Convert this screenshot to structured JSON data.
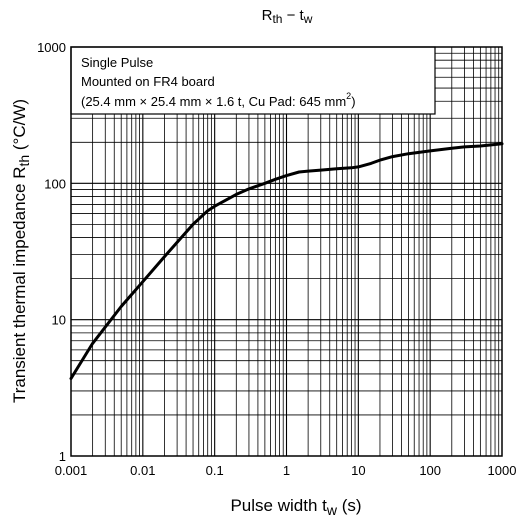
{
  "chart_data": {
    "type": "line",
    "title_main": "R",
    "title_sub": "th",
    "title_mid": " − t",
    "title_sub2": "w",
    "xlabel_main": "Pulse width    t",
    "xlabel_sub": "w",
    "xlabel_unit": "   (s)",
    "ylabel_main": "Transient thermal impedance  R",
    "ylabel_sub": "th",
    "ylabel_unit": "  (°C/W)",
    "x_scale": "log",
    "y_scale": "log",
    "xlim": [
      0.001,
      1000
    ],
    "ylim": [
      1,
      1000
    ],
    "x_ticks": [
      "0.001",
      "0.01",
      "0.1",
      "1",
      "10",
      "100",
      "1000"
    ],
    "y_ticks": [
      "1",
      "10",
      "100",
      "1000"
    ],
    "grid": true,
    "annotation": {
      "line1": "Single Pulse",
      "line2": "Mounted on FR4 board",
      "line3_main": "(25.4 mm × 25.4 mm × 1.6 t, Cu Pad: 645 mm",
      "line3_sup": "2",
      "line3_end": ")"
    },
    "series": [
      {
        "x": [
          0.001,
          0.002,
          0.005,
          0.01,
          0.02,
          0.05,
          0.08,
          0.1,
          0.2,
          0.3,
          0.5,
          0.7,
          1,
          1.5,
          2,
          3,
          5,
          8,
          10,
          15,
          20,
          30,
          50,
          100,
          200,
          300,
          500,
          1000
        ],
        "y": [
          3.7,
          6.7,
          12.5,
          19,
          29,
          50,
          63,
          68,
          83,
          91,
          100,
          107,
          114,
          121,
          123,
          125,
          128,
          130,
          132,
          140,
          148,
          157,
          165,
          173,
          181,
          185,
          188,
          195
        ]
      }
    ]
  }
}
